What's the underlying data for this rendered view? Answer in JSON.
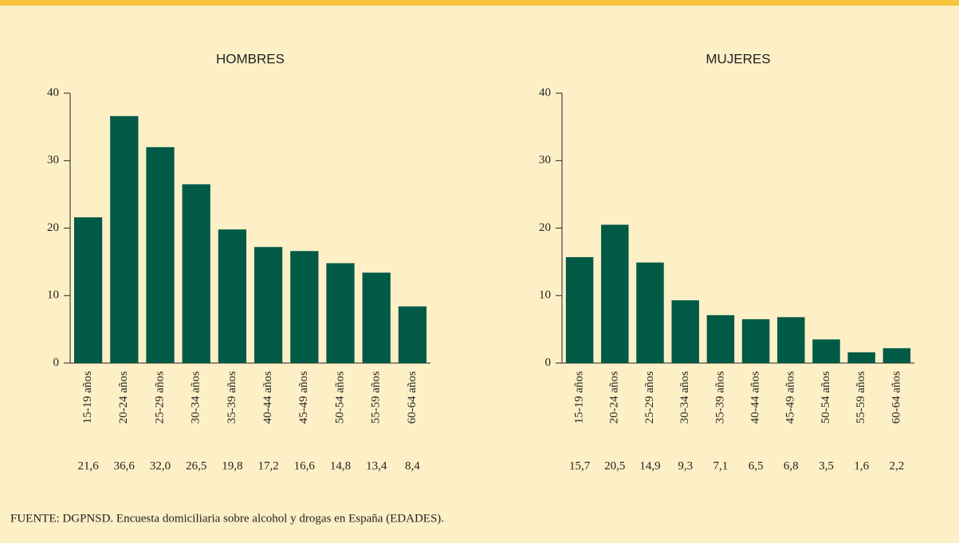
{
  "chart_data": [
    {
      "type": "bar",
      "title": "HOMBRES",
      "categories": [
        "15-19 años",
        "20-24 años",
        "25-29 años",
        "30-34 años",
        "35-39 años",
        "40-44 años",
        "45-49 años",
        "50-54 años",
        "55-59 años",
        "60-64 años"
      ],
      "values": [
        21.6,
        36.6,
        32.0,
        26.5,
        19.8,
        17.2,
        16.6,
        14.8,
        13.4,
        8.4
      ],
      "value_labels": [
        "21,6",
        "36,6",
        "32,0",
        "26,5",
        "19,8",
        "17,2",
        "16,6",
        "14,8",
        "13,4",
        "8,4"
      ],
      "color": "#005a46",
      "ylim": [
        0,
        40
      ],
      "yticks": [
        0,
        10,
        20,
        30,
        40
      ]
    },
    {
      "type": "bar",
      "title": "MUJERES",
      "categories": [
        "15-19 años",
        "20-24 años",
        "25-29 años",
        "30-34 años",
        "35-39 años",
        "40-44 años",
        "45-49 años",
        "50-54 años",
        "55-59 años",
        "60-64 años"
      ],
      "values": [
        15.7,
        20.5,
        14.9,
        9.3,
        7.1,
        6.5,
        6.8,
        3.5,
        1.6,
        2.2
      ],
      "value_labels": [
        "15,7",
        "20,5",
        "14,9",
        "9,3",
        "7,1",
        "6,5",
        "6,8",
        "3,5",
        "1,6",
        "2,2"
      ],
      "color": "#005a46",
      "ylim": [
        0,
        40
      ],
      "yticks": [
        0,
        10,
        20,
        30,
        40
      ]
    }
  ],
  "source": "FUENTE: DGPNSD. Encuesta domiciliaria sobre alcohol y drogas en España (EDADES)."
}
